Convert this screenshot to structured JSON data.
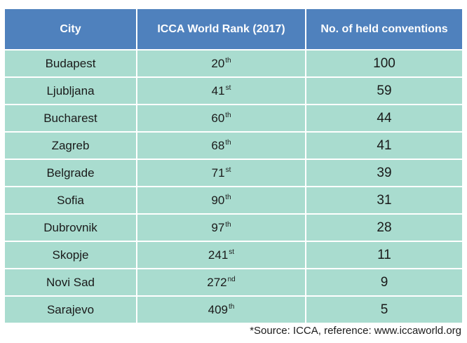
{
  "chart_data": {
    "type": "table",
    "columns": [
      "City",
      "ICCA World Rank (2017)",
      "No. of held conventions"
    ],
    "rows": [
      {
        "city": "Budapest",
        "rank": "20",
        "rank_suffix": "th",
        "conventions": 100
      },
      {
        "city": "Ljubljana",
        "rank": "41",
        "rank_suffix": "st",
        "conventions": 59
      },
      {
        "city": "Bucharest",
        "rank": "60",
        "rank_suffix": "th",
        "conventions": 44
      },
      {
        "city": "Zagreb",
        "rank": "68",
        "rank_suffix": "th",
        "conventions": 41
      },
      {
        "city": "Belgrade",
        "rank": "71",
        "rank_suffix": "st",
        "conventions": 39
      },
      {
        "city": "Sofia",
        "rank": "90",
        "rank_suffix": "th",
        "conventions": 31
      },
      {
        "city": "Dubrovnik",
        "rank": "97",
        "rank_suffix": "th",
        "conventions": 28
      },
      {
        "city": "Skopje",
        "rank": "241",
        "rank_suffix": "st",
        "conventions": 11
      },
      {
        "city": "Novi Sad",
        "rank": "272",
        "rank_suffix": "nd",
        "conventions": 9
      },
      {
        "city": "Sarajevo",
        "rank": "409",
        "rank_suffix": "th",
        "conventions": 5
      }
    ],
    "source_note": "*Source: ICCA, reference: www.iccaworld.org"
  },
  "colors": {
    "header_bg": "#4f81bd",
    "header_text": "#ffffff",
    "row_bg": "#a9dccf",
    "grid": "#ffffff"
  }
}
